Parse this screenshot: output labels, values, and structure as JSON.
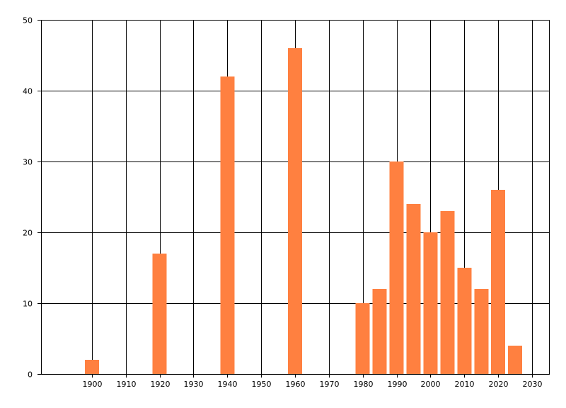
{
  "chart_data": {
    "type": "bar",
    "title": "",
    "xlabel": "",
    "ylabel": "",
    "x": [
      1900,
      1920,
      1940,
      1960,
      1980,
      1985,
      1990,
      1995,
      2000,
      2005,
      2010,
      2015,
      2020,
      2025
    ],
    "values": [
      2,
      17,
      42,
      46,
      10,
      12,
      30,
      24,
      20,
      23,
      15,
      12,
      26,
      4
    ],
    "xlim": [
      1885,
      2035
    ],
    "ylim": [
      0,
      50
    ],
    "x_ticks": [
      1900,
      1910,
      1920,
      1930,
      1940,
      1950,
      1960,
      1970,
      1980,
      1990,
      2000,
      2010,
      2020,
      2030
    ],
    "y_ticks": [
      0,
      10,
      20,
      30,
      40,
      50
    ],
    "x_tick_labels": [
      "1900",
      "1910",
      "1920",
      "1930",
      "1940",
      "1950",
      "1960",
      "1970",
      "1980",
      "1990",
      "2000",
      "2010",
      "2020",
      "2030"
    ],
    "y_tick_labels": [
      "0",
      "10",
      "20",
      "30",
      "40",
      "50"
    ],
    "bar_color": "#FF8040",
    "grid": true,
    "legend": "none"
  }
}
